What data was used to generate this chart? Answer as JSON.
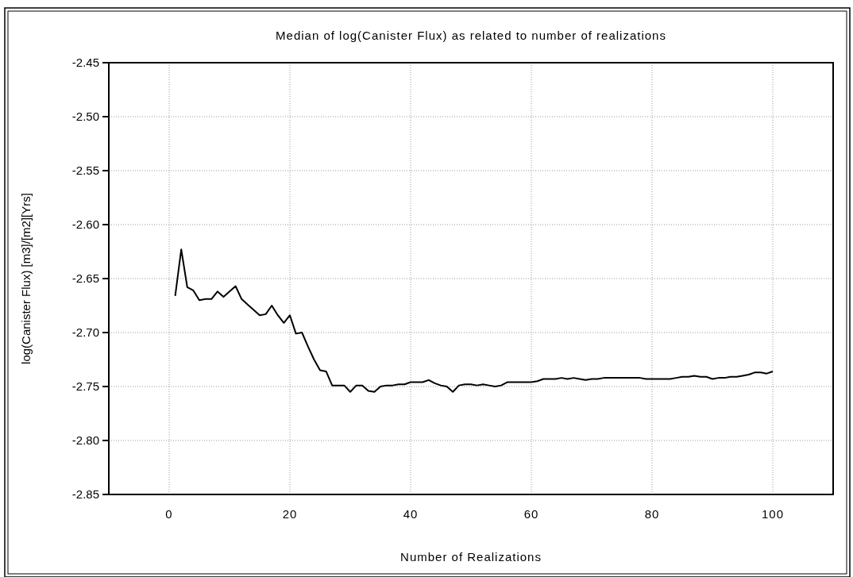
{
  "chart_data": {
    "type": "line",
    "title": "Median of log(Canister Flux) as related to number of realizations",
    "xlabel": "Number of Realizations",
    "ylabel": "log(Canister Flux) [m3]/[m2][Yrs]",
    "xlim": [
      -10,
      110
    ],
    "xticks": [
      0,
      20,
      40,
      60,
      80,
      100
    ],
    "ylim": [
      -2.85,
      -2.45
    ],
    "yticks": [
      {
        "value": -2.85,
        "label": "-2.85"
      },
      {
        "value": -2.8,
        "label": "-2.80"
      },
      {
        "value": -2.75,
        "label": "-2.75"
      },
      {
        "value": -2.7,
        "label": "-2.70"
      },
      {
        "value": -2.65,
        "label": "-2.65"
      },
      {
        "value": -2.6,
        "label": "-2.60"
      },
      {
        "value": -2.55,
        "label": "-2.55"
      },
      {
        "value": -2.5,
        "label": "-2.50"
      },
      {
        "value": -2.45,
        "label": "-2.45"
      }
    ],
    "grid": true,
    "x": [
      1,
      2,
      3,
      4,
      5,
      6,
      7,
      8,
      9,
      10,
      11,
      12,
      13,
      14,
      15,
      16,
      17,
      18,
      19,
      20,
      21,
      22,
      23,
      24,
      25,
      26,
      27,
      28,
      29,
      30,
      31,
      32,
      33,
      34,
      35,
      36,
      37,
      38,
      39,
      40,
      41,
      42,
      43,
      44,
      45,
      46,
      47,
      48,
      49,
      50,
      51,
      52,
      53,
      54,
      55,
      56,
      57,
      58,
      59,
      60,
      61,
      62,
      63,
      64,
      65,
      66,
      67,
      68,
      69,
      70,
      71,
      72,
      73,
      74,
      75,
      76,
      77,
      78,
      79,
      80,
      81,
      82,
      83,
      84,
      85,
      86,
      87,
      88,
      89,
      90,
      91,
      92,
      93,
      94,
      95,
      96,
      97,
      98,
      99,
      100
    ],
    "series": [
      {
        "color": "#000000",
        "values": [
          -2.666,
          -2.623,
          -2.658,
          -2.661,
          -2.67,
          -2.669,
          -2.669,
          -2.662,
          -2.667,
          -2.662,
          -2.657,
          -2.669,
          -2.674,
          -2.679,
          -2.684,
          -2.683,
          -2.675,
          -2.684,
          -2.691,
          -2.684,
          -2.701,
          -2.7,
          -2.713,
          -2.725,
          -2.735,
          -2.736,
          -2.749,
          -2.749,
          -2.749,
          -2.755,
          -2.749,
          -2.749,
          -2.754,
          -2.755,
          -2.75,
          -2.749,
          -2.749,
          -2.748,
          -2.748,
          -2.746,
          -2.746,
          -2.746,
          -2.744,
          -2.747,
          -2.749,
          -2.75,
          -2.755,
          -2.749,
          -2.748,
          -2.748,
          -2.749,
          -2.748,
          -2.749,
          -2.75,
          -2.749,
          -2.746,
          -2.746,
          -2.746,
          -2.746,
          -2.746,
          -2.745,
          -2.743,
          -2.743,
          -2.743,
          -2.742,
          -2.743,
          -2.742,
          -2.743,
          -2.744,
          -2.743,
          -2.743,
          -2.742,
          -2.742,
          -2.742,
          -2.742,
          -2.742,
          -2.742,
          -2.742,
          -2.743,
          -2.743,
          -2.743,
          -2.743,
          -2.743,
          -2.742,
          -2.741,
          -2.741,
          -2.74,
          -2.741,
          -2.741,
          -2.743,
          -2.742,
          -2.742,
          -2.741,
          -2.741,
          -2.74,
          -2.739,
          -2.737,
          -2.737,
          -2.738,
          -2.736
        ]
      }
    ]
  }
}
